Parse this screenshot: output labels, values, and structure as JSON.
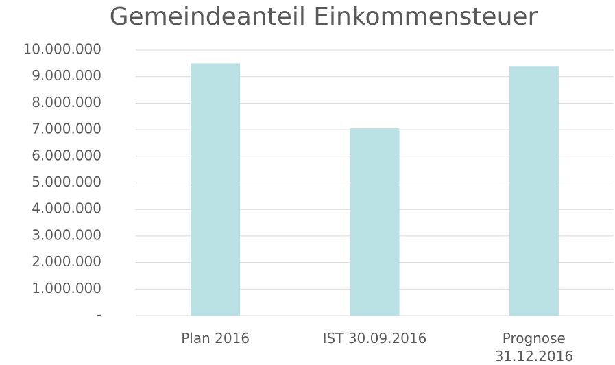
{
  "chart_data": {
    "type": "bar",
    "title": "Gemeindeanteil Einkommensteuer",
    "categories": [
      "Plan 2016",
      "IST 30.09.2016",
      "Prognose\n31.12.2016"
    ],
    "values": [
      9500000,
      7050000,
      9400000
    ],
    "color": "#b9e0e3",
    "ylim": [
      0,
      10000000
    ],
    "yticks": [
      {
        "value": 0,
        "label": "-"
      },
      {
        "value": 1000000,
        "label": "1.000.000"
      },
      {
        "value": 2000000,
        "label": "2.000.000"
      },
      {
        "value": 3000000,
        "label": "3.000.000"
      },
      {
        "value": 4000000,
        "label": "4.000.000"
      },
      {
        "value": 5000000,
        "label": "5.000.000"
      },
      {
        "value": 6000000,
        "label": "6.000.000"
      },
      {
        "value": 7000000,
        "label": "7.000.000"
      },
      {
        "value": 8000000,
        "label": "8.000.000"
      },
      {
        "value": 9000000,
        "label": "9.000.000"
      },
      {
        "value": 10000000,
        "label": "10.000.000"
      }
    ],
    "grid": true
  }
}
